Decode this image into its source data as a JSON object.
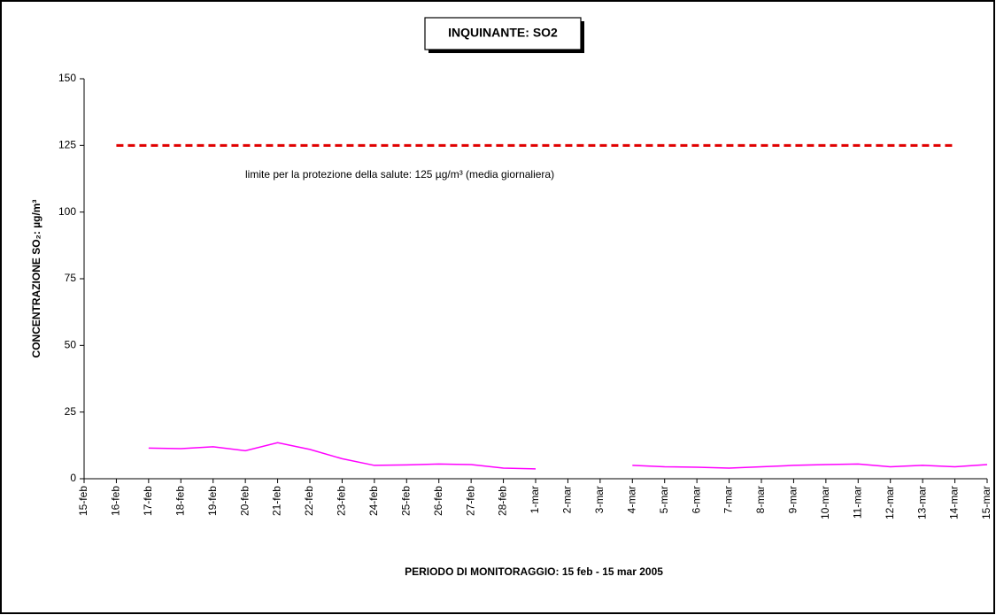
{
  "chart_data": {
    "type": "line",
    "title": "INQUINANTE: SO2",
    "x_label": "PERIODO DI MONITORAGGIO: 15 feb - 15 mar 2005",
    "y_label": "CONCENTRAZIONE SO₂:  µg/m³",
    "annotation": "limite per la protezione della salute: 125 µg/m³ (media giornaliera)",
    "categories": [
      "15-feb",
      "16-feb",
      "17-feb",
      "18-feb",
      "19-feb",
      "20-feb",
      "21-feb",
      "22-feb",
      "23-feb",
      "24-feb",
      "25-feb",
      "26-feb",
      "27-feb",
      "28-feb",
      "1-mar",
      "2-mar",
      "3-mar",
      "4-mar",
      "5-mar",
      "6-mar",
      "7-mar",
      "8-mar",
      "9-mar",
      "10-mar",
      "11-mar",
      "12-mar",
      "13-mar",
      "14-mar",
      "15-mar"
    ],
    "series": [
      {
        "color": "#ff00ff",
        "dashed": false,
        "values": [
          null,
          null,
          11.5,
          11.3,
          12,
          10.5,
          13.5,
          11,
          7.5,
          5,
          5.2,
          5.5,
          5.3,
          4,
          3.7,
          null,
          null,
          5,
          4.5,
          4.3,
          4,
          4.5,
          5,
          5.3,
          5.5,
          4.5,
          5,
          4.5,
          5.3
        ]
      },
      {
        "color": "#e00000",
        "dashed": true,
        "values": [
          null,
          125,
          125,
          125,
          125,
          125,
          125,
          125,
          125,
          125,
          125,
          125,
          125,
          125,
          125,
          125,
          125,
          125,
          125,
          125,
          125,
          125,
          125,
          125,
          125,
          125,
          125,
          125,
          null
        ]
      }
    ],
    "ylim": [
      0,
      150
    ],
    "yticks": [
      0,
      25,
      50,
      75,
      100,
      125,
      150
    ],
    "grid": false
  }
}
